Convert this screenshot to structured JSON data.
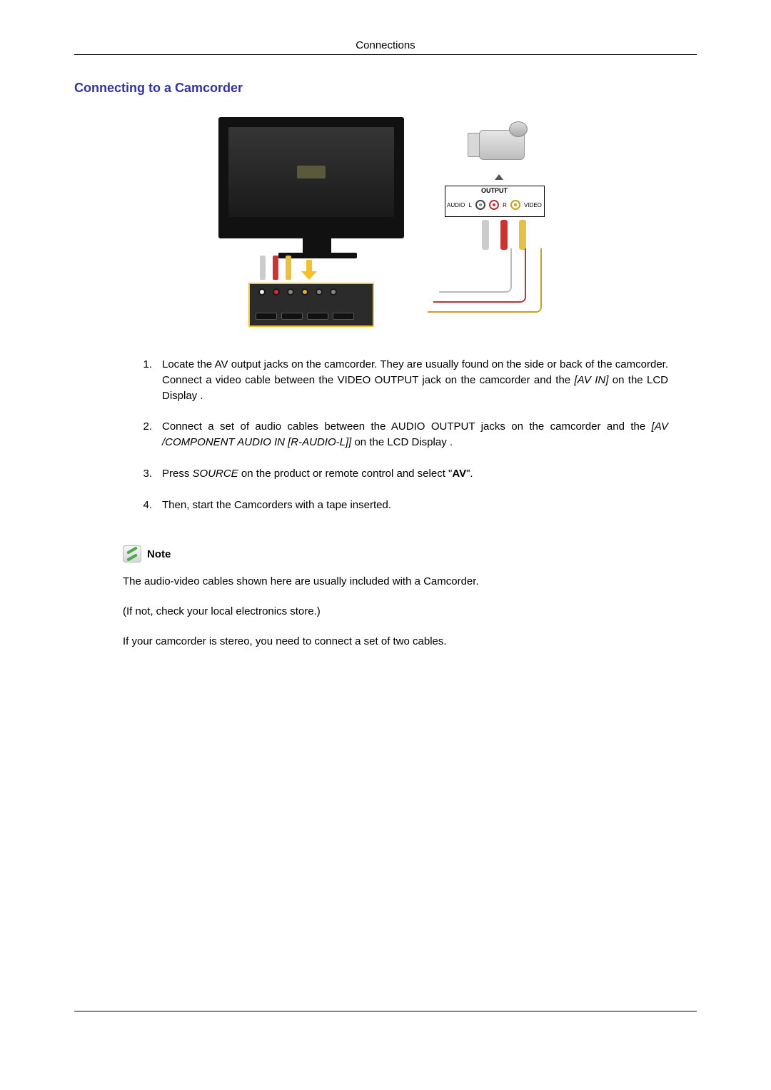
{
  "running_head": "Connections",
  "section_title": "Connecting to a Camcorder",
  "colors": {
    "section_title": "#333399",
    "text": "#000000",
    "accent_white": "#cccccc",
    "accent_red": "#cc3333",
    "accent_yellow": "#e6c14a",
    "highlight_border": "#f6c02a"
  },
  "figure": {
    "tv_label": "",
    "output_box": {
      "title": "OUTPUT",
      "audio_label": "AUDIO",
      "video_label": "VIDEO",
      "left_label": "L",
      "right_label": "R"
    }
  },
  "steps": [
    {
      "num": "1.",
      "segments": [
        {
          "t": "text",
          "v": "Locate the AV output jacks on the camcorder. They are usually found on the side or back of the camcorder. Connect a video cable between the VIDEO OUTPUT jack on the camcorder and the "
        },
        {
          "t": "italic",
          "v": "[AV IN]"
        },
        {
          "t": "text",
          "v": " on the LCD Display ."
        }
      ]
    },
    {
      "num": "2.",
      "segments": [
        {
          "t": "text",
          "v": "Connect a set of audio cables between the AUDIO OUTPUT jacks on the camcorder and the "
        },
        {
          "t": "italic",
          "v": "[AV /COMPONENT AUDIO IN [R-AUDIO-L]]"
        },
        {
          "t": "text",
          "v": " on the LCD Display ."
        }
      ]
    },
    {
      "num": "3.",
      "segments": [
        {
          "t": "text",
          "v": "Press "
        },
        {
          "t": "italic",
          "v": "SOURCE"
        },
        {
          "t": "text",
          "v": " on the product or remote control and select \""
        },
        {
          "t": "bold",
          "v": "AV"
        },
        {
          "t": "text",
          "v": "\"."
        }
      ]
    },
    {
      "num": "4.",
      "segments": [
        {
          "t": "text",
          "v": "Then, start the Camcorders with a tape inserted."
        }
      ]
    }
  ],
  "note_label": "Note",
  "note_paragraphs": [
    "The audio-video cables shown here are usually included with a Camcorder.",
    "(If not, check your local electronics store.)",
    "If your camcorder is stereo, you need to connect a set of two cables."
  ]
}
